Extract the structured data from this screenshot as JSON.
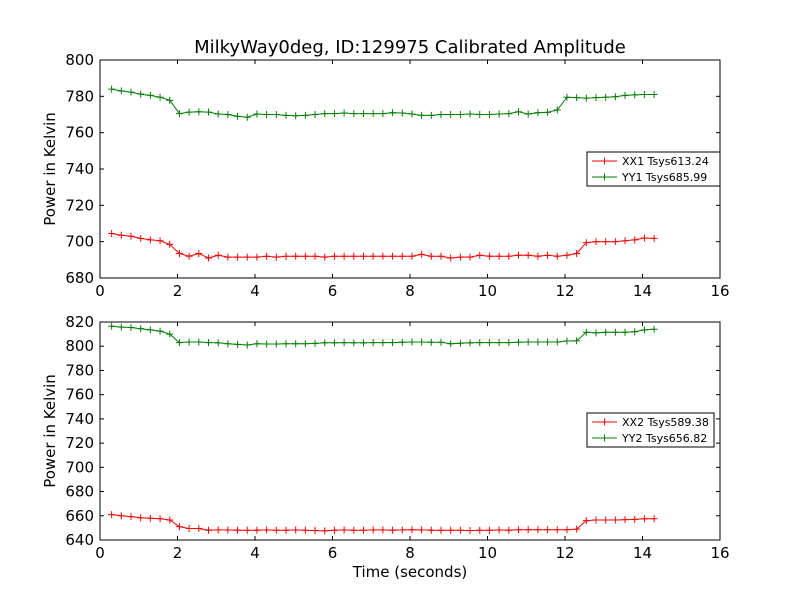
{
  "title": "MilkyWay0deg, ID:129975 Calibrated Amplitude",
  "chart_data": [
    {
      "type": "line",
      "title": "MilkyWay0deg, ID:129975 Calibrated Amplitude",
      "xlabel": "",
      "ylabel": "Power in Kelvin",
      "xlim": [
        0,
        16
      ],
      "ylim": [
        680,
        800
      ],
      "xticks": [
        0,
        2,
        4,
        6,
        8,
        10,
        12,
        14,
        16
      ],
      "yticks": [
        680,
        700,
        720,
        740,
        760,
        780,
        800
      ],
      "grid": false,
      "legend_position": "right",
      "x": [
        0.3,
        0.55,
        0.8,
        1.05,
        1.3,
        1.55,
        1.8,
        2.05,
        2.3,
        2.55,
        2.8,
        3.05,
        3.3,
        3.55,
        3.8,
        4.05,
        4.3,
        4.55,
        4.8,
        5.05,
        5.3,
        5.55,
        5.8,
        6.05,
        6.3,
        6.55,
        6.8,
        7.05,
        7.3,
        7.55,
        7.8,
        8.05,
        8.3,
        8.55,
        8.8,
        9.05,
        9.3,
        9.55,
        9.8,
        10.05,
        10.3,
        10.55,
        10.8,
        11.05,
        11.3,
        11.55,
        11.8,
        12.05,
        12.3,
        12.55,
        12.8,
        13.05,
        13.3,
        13.55,
        13.8,
        14.05,
        14.3
      ],
      "series": [
        {
          "name": "XX1 Tsys613.24",
          "color": "#ff0000",
          "values": [
            704.5,
            703.5,
            703.0,
            701.8,
            701.0,
            700.5,
            698.5,
            693.5,
            692.0,
            693.5,
            691.0,
            692.5,
            691.5,
            691.5,
            691.5,
            691.5,
            692.0,
            691.5,
            692.0,
            692.0,
            692.0,
            692.0,
            691.5,
            692.0,
            692.0,
            692.0,
            692.0,
            692.0,
            692.0,
            692.0,
            692.0,
            692.0,
            693.0,
            692.0,
            692.0,
            691.0,
            691.5,
            691.5,
            692.5,
            692.0,
            692.0,
            692.0,
            692.5,
            692.5,
            692.0,
            692.5,
            692.0,
            692.5,
            693.5,
            699.5,
            700.0,
            700.0,
            700.0,
            700.5,
            701.0,
            702.0,
            701.8
          ]
        },
        {
          "name": "YY1 Tsys685.99",
          "color": "#008000",
          "values": [
            784.0,
            783.0,
            782.3,
            781.2,
            780.5,
            779.5,
            777.8,
            770.5,
            771.3,
            771.5,
            771.3,
            770.3,
            770.0,
            769.0,
            768.5,
            770.3,
            770.0,
            770.0,
            769.5,
            769.3,
            769.5,
            770.0,
            770.5,
            770.5,
            770.8,
            770.5,
            770.5,
            770.5,
            770.5,
            771.0,
            770.8,
            770.3,
            769.5,
            769.5,
            770.0,
            770.0,
            770.0,
            770.3,
            770.0,
            770.0,
            770.3,
            770.5,
            771.5,
            770.3,
            771.0,
            771.2,
            772.5,
            779.5,
            779.3,
            779.0,
            779.3,
            779.5,
            779.8,
            780.5,
            780.8,
            781.0,
            781.0
          ]
        }
      ]
    },
    {
      "type": "line",
      "title": "",
      "xlabel": "Time (seconds)",
      "ylabel": "Power in Kelvin",
      "xlim": [
        0,
        16
      ],
      "ylim": [
        640,
        820
      ],
      "xticks": [
        0,
        2,
        4,
        6,
        8,
        10,
        12,
        14,
        16
      ],
      "yticks": [
        640,
        660,
        680,
        700,
        720,
        740,
        760,
        780,
        800,
        820
      ],
      "grid": false,
      "legend_position": "right",
      "x": [
        0.3,
        0.55,
        0.8,
        1.05,
        1.3,
        1.55,
        1.8,
        2.05,
        2.3,
        2.55,
        2.8,
        3.05,
        3.3,
        3.55,
        3.8,
        4.05,
        4.3,
        4.55,
        4.8,
        5.05,
        5.3,
        5.55,
        5.8,
        6.05,
        6.3,
        6.55,
        6.8,
        7.05,
        7.3,
        7.55,
        7.8,
        8.05,
        8.3,
        8.55,
        8.8,
        9.05,
        9.3,
        9.55,
        9.8,
        10.05,
        10.3,
        10.55,
        10.8,
        11.05,
        11.3,
        11.55,
        11.8,
        12.05,
        12.3,
        12.55,
        12.8,
        13.05,
        13.3,
        13.55,
        13.8,
        14.05,
        14.3
      ],
      "series": [
        {
          "name": "XX2 Tsys589.38",
          "color": "#ff0000",
          "values": [
            661.0,
            660.0,
            659.3,
            658.3,
            658.0,
            657.5,
            656.5,
            651.0,
            649.5,
            649.5,
            648.0,
            648.3,
            648.3,
            648.0,
            648.0,
            648.0,
            648.3,
            648.0,
            648.0,
            648.3,
            648.0,
            647.8,
            647.5,
            648.0,
            648.3,
            648.0,
            648.0,
            648.3,
            648.3,
            648.0,
            648.3,
            648.5,
            648.3,
            648.0,
            648.0,
            648.0,
            648.0,
            647.8,
            648.0,
            648.0,
            648.3,
            648.0,
            648.5,
            648.5,
            648.5,
            648.5,
            648.5,
            648.5,
            649.0,
            656.0,
            656.5,
            656.5,
            656.5,
            656.8,
            657.0,
            657.5,
            657.5
          ]
        },
        {
          "name": "YY2 Tsys656.82",
          "color": "#008000",
          "values": [
            816.5,
            815.8,
            815.5,
            814.5,
            813.5,
            812.5,
            810.0,
            803.0,
            803.5,
            803.5,
            803.0,
            802.8,
            802.0,
            801.5,
            801.0,
            802.0,
            801.8,
            801.8,
            802.0,
            802.0,
            802.0,
            802.3,
            802.8,
            802.8,
            803.0,
            802.8,
            802.8,
            803.0,
            803.0,
            803.0,
            803.3,
            803.5,
            803.5,
            803.3,
            803.3,
            802.0,
            802.5,
            802.8,
            803.0,
            803.0,
            803.0,
            803.0,
            803.3,
            803.5,
            803.5,
            803.5,
            803.5,
            804.3,
            804.5,
            811.5,
            811.0,
            811.5,
            811.5,
            811.5,
            812.0,
            813.5,
            814.0
          ]
        }
      ]
    }
  ]
}
